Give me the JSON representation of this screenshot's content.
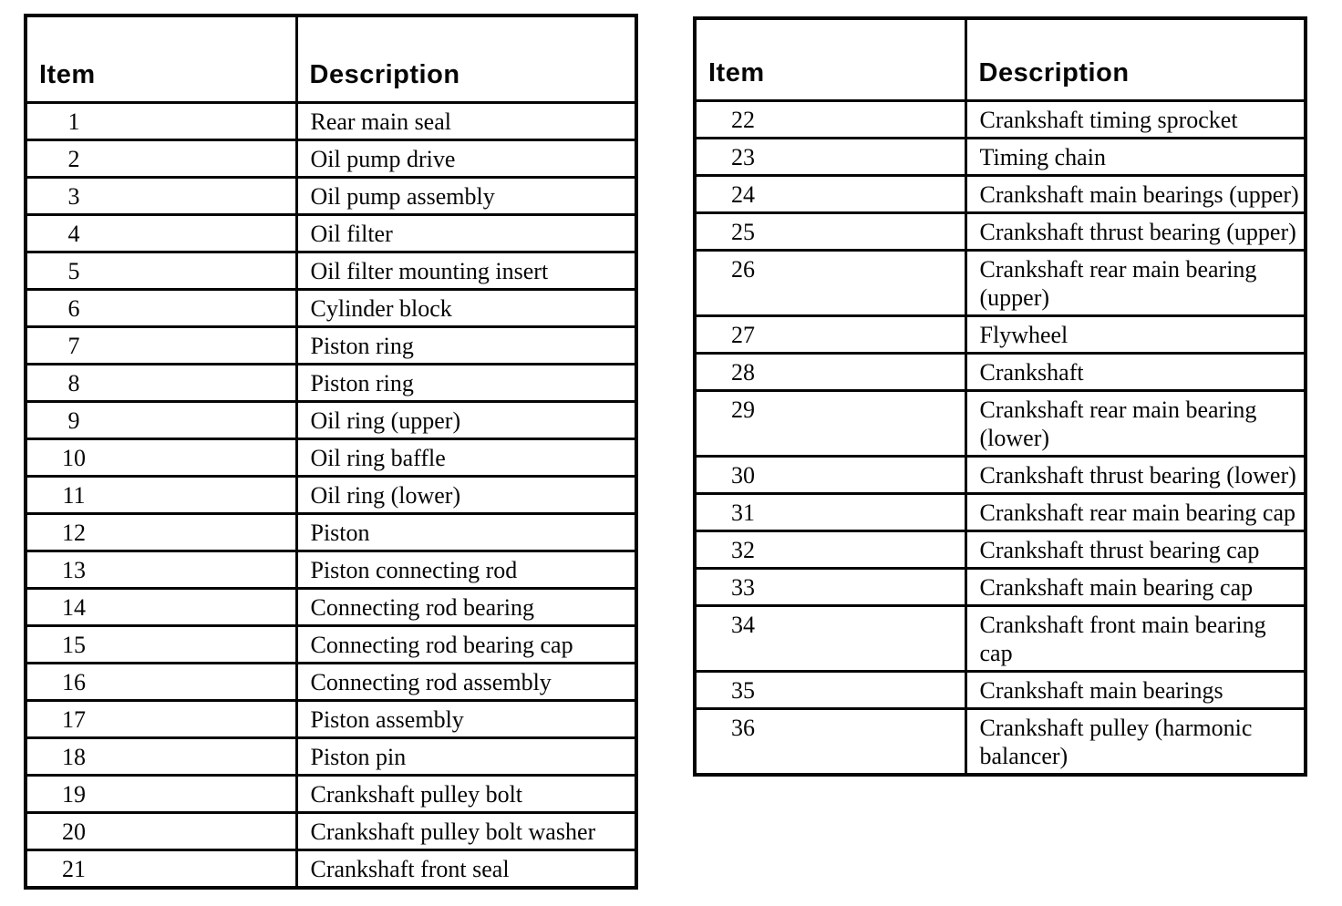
{
  "page": {
    "background_color": "#ffffff",
    "text_color": "#060606",
    "border_color": "#050505"
  },
  "tables": [
    {
      "name": "left-parts-table",
      "headers": {
        "item": "Item",
        "description": "Description"
      },
      "rows": [
        {
          "item": "1",
          "description": "Rear main seal"
        },
        {
          "item": "2",
          "description": "Oil pump drive"
        },
        {
          "item": "3",
          "description": "Oil pump assembly"
        },
        {
          "item": "4",
          "description": "Oil filter"
        },
        {
          "item": "5",
          "description": "Oil filter mounting insert"
        },
        {
          "item": "6",
          "description": "Cylinder block"
        },
        {
          "item": "7",
          "description": "Piston ring"
        },
        {
          "item": "8",
          "description": "Piston ring"
        },
        {
          "item": "9",
          "description": "Oil ring (upper)"
        },
        {
          "item": "10",
          "description": "Oil ring baffle"
        },
        {
          "item": "11",
          "description": "Oil ring (lower)"
        },
        {
          "item": "12",
          "description": "Piston"
        },
        {
          "item": "13",
          "description": "Piston connecting rod"
        },
        {
          "item": "14",
          "description": "Connecting rod bearing"
        },
        {
          "item": "15",
          "description": "Connecting rod bearing cap"
        },
        {
          "item": "16",
          "description": "Connecting rod assembly"
        },
        {
          "item": "17",
          "description": "Piston assembly"
        },
        {
          "item": "18",
          "description": "Piston pin"
        },
        {
          "item": "19",
          "description": "Crankshaft pulley bolt"
        },
        {
          "item": "20",
          "description": "Crankshaft pulley bolt washer"
        },
        {
          "item": "21",
          "description": "Crankshaft front seal"
        }
      ]
    },
    {
      "name": "right-parts-table",
      "headers": {
        "item": "Item",
        "description": "Description"
      },
      "rows": [
        {
          "item": "22",
          "description": "Crankshaft timing sprocket"
        },
        {
          "item": "23",
          "description": "Timing chain"
        },
        {
          "item": "24",
          "description": "Crankshaft main bearings (upper)"
        },
        {
          "item": "25",
          "description": "Crankshaft thrust bearing (upper)"
        },
        {
          "item": "26",
          "description": "Crankshaft rear main bearing (upper)"
        },
        {
          "item": "27",
          "description": "Flywheel"
        },
        {
          "item": "28",
          "description": "Crankshaft"
        },
        {
          "item": "29",
          "description": "Crankshaft rear main bearing (lower)"
        },
        {
          "item": "30",
          "description": "Crankshaft thrust bearing (lower)"
        },
        {
          "item": "31",
          "description": "Crankshaft rear main bearing cap"
        },
        {
          "item": "32",
          "description": "Crankshaft thrust bearing cap"
        },
        {
          "item": "33",
          "description": "Crankshaft main bearing cap"
        },
        {
          "item": "34",
          "description": "Crankshaft front main bearing cap"
        },
        {
          "item": "35",
          "description": "Crankshaft main bearings"
        },
        {
          "item": "36",
          "description": "Crankshaft pulley (harmonic balancer)"
        }
      ]
    }
  ]
}
